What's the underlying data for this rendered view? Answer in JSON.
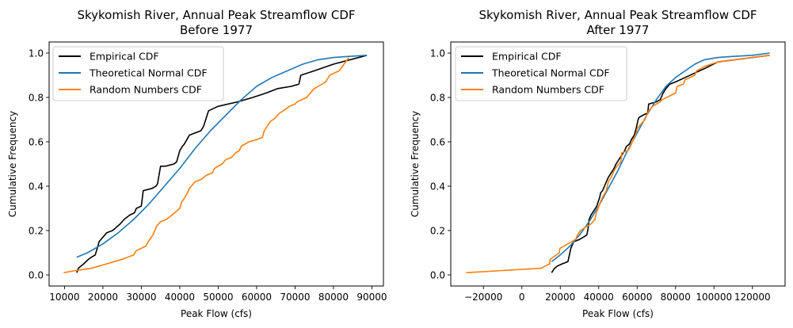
{
  "chart_data": [
    {
      "type": "line",
      "title": "Skykomish River, Annual Peak Streamflow CDF\nBefore 1977",
      "title_lines": [
        "Skykomish River, Annual Peak Streamflow CDF",
        "Before 1977"
      ],
      "xlabel": "Peak Flow (cfs)",
      "ylabel": "Cumulative Frequency",
      "xlim": [
        6000,
        93000
      ],
      "ylim": [
        -0.05,
        1.05
      ],
      "xticks": [
        10000,
        20000,
        30000,
        40000,
        50000,
        60000,
        70000,
        80000,
        90000
      ],
      "xtick_labels": [
        "10000",
        "20000",
        "30000",
        "40000",
        "50000",
        "60000",
        "70000",
        "80000",
        "90000"
      ],
      "yticks": [
        0.0,
        0.2,
        0.4,
        0.6,
        0.8,
        1.0
      ],
      "ytick_labels": [
        "0.0",
        "0.2",
        "0.4",
        "0.6",
        "0.8",
        "1.0"
      ],
      "grid": false,
      "legend": "top-left",
      "series": [
        {
          "name": "Empirical CDF",
          "color": "#000000",
          "x": [
            13200,
            13600,
            14300,
            15000,
            16200,
            17000,
            18000,
            18700,
            19000,
            20000,
            21000,
            22500,
            23200,
            24500,
            25500,
            27000,
            28200,
            28700,
            30000,
            30500,
            32800,
            33800,
            34200,
            35000,
            36200,
            38500,
            39200,
            40000,
            40700,
            41200,
            42500,
            45500,
            46200,
            47500,
            50000,
            55000,
            59000,
            62500,
            65500,
            69000,
            71000,
            71500,
            75000,
            80000,
            88700
          ],
          "y": [
            0.01,
            0.03,
            0.04,
            0.05,
            0.07,
            0.08,
            0.09,
            0.13,
            0.15,
            0.17,
            0.19,
            0.2,
            0.21,
            0.23,
            0.25,
            0.27,
            0.28,
            0.3,
            0.31,
            0.38,
            0.39,
            0.4,
            0.41,
            0.49,
            0.49,
            0.5,
            0.51,
            0.56,
            0.58,
            0.59,
            0.63,
            0.65,
            0.67,
            0.74,
            0.76,
            0.78,
            0.8,
            0.82,
            0.84,
            0.85,
            0.86,
            0.9,
            0.92,
            0.95,
            0.99
          ]
        },
        {
          "name": "Theoretical Normal CDF",
          "color": "#1f77b4",
          "x": [
            13200,
            16000,
            20000,
            24000,
            28000,
            32000,
            36000,
            40000,
            44000,
            48000,
            52000,
            56000,
            60000,
            64000,
            68000,
            72000,
            76000,
            80000,
            84000,
            88700
          ],
          "y": [
            0.08,
            0.1,
            0.14,
            0.19,
            0.25,
            0.32,
            0.4,
            0.48,
            0.57,
            0.65,
            0.72,
            0.79,
            0.85,
            0.89,
            0.92,
            0.95,
            0.97,
            0.98,
            0.985,
            0.99
          ]
        },
        {
          "name": "Random Numbers CDF",
          "color": "#ff7f0e",
          "x": [
            9800,
            13000,
            17000,
            19000,
            21000,
            23000,
            25000,
            28000,
            28700,
            30000,
            31200,
            31800,
            33000,
            34000,
            35000,
            36500,
            38000,
            40000,
            40500,
            41000,
            42000,
            42500,
            44000,
            45500,
            47000,
            48500,
            49000,
            51000,
            52000,
            53500,
            54500,
            55500,
            56000,
            58000,
            60000,
            61500,
            62000,
            63500,
            65000,
            66000,
            67000,
            68500,
            70000,
            70500,
            73000,
            75000,
            78000,
            79000,
            81500,
            84000
          ],
          "y": [
            0.01,
            0.02,
            0.03,
            0.04,
            0.05,
            0.06,
            0.07,
            0.09,
            0.11,
            0.12,
            0.13,
            0.15,
            0.18,
            0.22,
            0.24,
            0.25,
            0.27,
            0.3,
            0.33,
            0.34,
            0.37,
            0.39,
            0.42,
            0.43,
            0.45,
            0.46,
            0.48,
            0.5,
            0.52,
            0.53,
            0.55,
            0.56,
            0.58,
            0.6,
            0.61,
            0.62,
            0.65,
            0.69,
            0.71,
            0.73,
            0.74,
            0.76,
            0.77,
            0.78,
            0.8,
            0.84,
            0.87,
            0.9,
            0.92,
            0.98
          ]
        }
      ]
    },
    {
      "type": "line",
      "title": "Skykomish River, Annual Peak Streamflow CDF\nAfter 1977",
      "title_lines": [
        "Skykomish River, Annual Peak Streamflow CDF",
        "After 1977"
      ],
      "xlabel": "Peak Flow (cfs)",
      "ylabel": "Cumulative Frequency",
      "xlim": [
        -37000,
        137000
      ],
      "ylim": [
        -0.05,
        1.05
      ],
      "xticks": [
        -20000,
        0,
        20000,
        40000,
        60000,
        80000,
        100000,
        120000
      ],
      "xtick_labels": [
        "−20000",
        "0",
        "20000",
        "40000",
        "60000",
        "80000",
        "100000",
        "120000"
      ],
      "yticks": [
        0.0,
        0.2,
        0.4,
        0.6,
        0.8,
        1.0
      ],
      "ytick_labels": [
        "0.0",
        "0.2",
        "0.4",
        "0.6",
        "0.8",
        "1.0"
      ],
      "grid": false,
      "legend": "top-left",
      "series": [
        {
          "name": "Empirical CDF",
          "color": "#000000",
          "x": [
            15500,
            17000,
            18500,
            21000,
            24000,
            25500,
            27000,
            30000,
            32000,
            33800,
            34500,
            35000,
            36000,
            37500,
            39000,
            40500,
            41000,
            42000,
            43500,
            45000,
            46500,
            48000,
            49000,
            50500,
            52000,
            53500,
            54500,
            56000,
            57000,
            58500,
            59500,
            60500,
            61000,
            63000,
            65500,
            66000,
            70000,
            72000,
            73500,
            75000,
            77000,
            80000,
            85000,
            90000,
            95000,
            102000,
            129000
          ],
          "y": [
            0.01,
            0.03,
            0.04,
            0.05,
            0.06,
            0.12,
            0.15,
            0.16,
            0.17,
            0.18,
            0.21,
            0.25,
            0.27,
            0.29,
            0.31,
            0.35,
            0.37,
            0.38,
            0.41,
            0.44,
            0.46,
            0.48,
            0.5,
            0.52,
            0.54,
            0.56,
            0.58,
            0.59,
            0.61,
            0.63,
            0.66,
            0.7,
            0.71,
            0.72,
            0.73,
            0.77,
            0.78,
            0.79,
            0.82,
            0.84,
            0.86,
            0.87,
            0.89,
            0.91,
            0.93,
            0.96,
            0.99
          ]
        },
        {
          "name": "Theoretical Normal CDF",
          "color": "#1f77b4",
          "x": [
            15500,
            20000,
            25000,
            30000,
            35000,
            40000,
            45000,
            50000,
            55000,
            60000,
            65000,
            70000,
            75000,
            80000,
            85000,
            90000,
            95000,
            102000,
            110000,
            120000,
            129000
          ],
          "y": [
            0.06,
            0.09,
            0.13,
            0.18,
            0.24,
            0.31,
            0.39,
            0.47,
            0.56,
            0.64,
            0.72,
            0.79,
            0.85,
            0.89,
            0.92,
            0.95,
            0.97,
            0.98,
            0.985,
            0.99,
            1.0
          ]
        },
        {
          "name": "Random Numbers CDF",
          "color": "#ff7f0e",
          "x": [
            -29000,
            10000,
            14500,
            14700,
            19500,
            19800,
            24000,
            28000,
            29000,
            30500,
            34000,
            36000,
            38000,
            38800,
            41000,
            42000,
            44000,
            45000,
            46500,
            48000,
            49500,
            51500,
            52000,
            55000,
            56000,
            57000,
            58000,
            59500,
            60000,
            62000,
            64000,
            66000,
            68000,
            70000,
            72000,
            73000,
            80000,
            80800,
            84000,
            85000,
            90000,
            91000,
            95000,
            102000,
            129000
          ],
          "y": [
            0.01,
            0.03,
            0.05,
            0.07,
            0.1,
            0.12,
            0.14,
            0.16,
            0.18,
            0.2,
            0.22,
            0.23,
            0.25,
            0.28,
            0.33,
            0.35,
            0.38,
            0.42,
            0.44,
            0.47,
            0.49,
            0.51,
            0.55,
            0.56,
            0.57,
            0.59,
            0.61,
            0.64,
            0.66,
            0.68,
            0.7,
            0.74,
            0.76,
            0.77,
            0.78,
            0.79,
            0.82,
            0.85,
            0.86,
            0.88,
            0.9,
            0.92,
            0.94,
            0.96,
            0.99
          ]
        }
      ]
    }
  ]
}
